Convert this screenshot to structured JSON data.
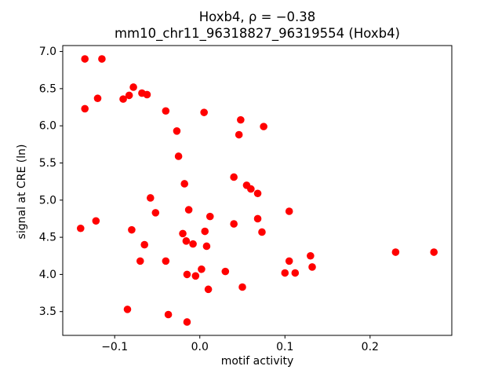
{
  "figure": {
    "background": "#ffffff",
    "frame_color": "#000000"
  },
  "chart_data": {
    "type": "scatter",
    "title": "Hoxb4, ρ = −0.38",
    "subtitle": "mm10_chr11_96318827_96319554 (Hoxb4)",
    "xlabel": "motif activity",
    "ylabel": "signal at CRE (ln)",
    "marker_color": "#ff0000",
    "marker_radius_px": 4.8,
    "grid": false,
    "legend": null,
    "xlim": [
      -0.161,
      0.296
    ],
    "ylim": [
      3.18,
      7.08
    ],
    "xticks": {
      "values": [
        -0.1,
        0.0,
        0.1,
        0.2
      ],
      "labels": [
        "−0.1",
        "0.0",
        "0.1",
        "0.2"
      ]
    },
    "yticks": {
      "values": [
        3.5,
        4.0,
        4.5,
        5.0,
        5.5,
        6.0,
        6.5,
        7.0
      ],
      "labels": [
        "3.5",
        "4.0",
        "4.5",
        "5.0",
        "5.5",
        "6.0",
        "6.5",
        "7.0"
      ]
    },
    "points": [
      [
        -0.135,
        6.9
      ],
      [
        -0.115,
        6.9
      ],
      [
        -0.135,
        6.23
      ],
      [
        -0.12,
        6.37
      ],
      [
        -0.09,
        6.36
      ],
      [
        -0.083,
        6.41
      ],
      [
        -0.078,
        6.52
      ],
      [
        -0.068,
        6.44
      ],
      [
        -0.062,
        6.42
      ],
      [
        -0.04,
        6.2
      ],
      [
        0.005,
        6.18
      ],
      [
        -0.027,
        5.93
      ],
      [
        0.048,
        6.08
      ],
      [
        0.046,
        5.88
      ],
      [
        0.075,
        5.99
      ],
      [
        -0.025,
        5.59
      ],
      [
        -0.018,
        5.22
      ],
      [
        0.04,
        5.31
      ],
      [
        0.055,
        5.2
      ],
      [
        0.06,
        5.15
      ],
      [
        0.068,
        5.09
      ],
      [
        -0.058,
        5.03
      ],
      [
        -0.013,
        4.87
      ],
      [
        -0.052,
        4.83
      ],
      [
        -0.14,
        4.62
      ],
      [
        -0.122,
        4.72
      ],
      [
        -0.08,
        4.6
      ],
      [
        0.012,
        4.78
      ],
      [
        0.04,
        4.68
      ],
      [
        0.068,
        4.75
      ],
      [
        0.073,
        4.57
      ],
      [
        0.105,
        4.85
      ],
      [
        -0.02,
        4.55
      ],
      [
        -0.016,
        4.45
      ],
      [
        -0.008,
        4.41
      ],
      [
        0.006,
        4.58
      ],
      [
        0.008,
        4.38
      ],
      [
        -0.065,
        4.4
      ],
      [
        -0.07,
        4.18
      ],
      [
        -0.04,
        4.18
      ],
      [
        -0.015,
        4.0
      ],
      [
        -0.005,
        3.98
      ],
      [
        0.002,
        4.07
      ],
      [
        0.03,
        4.04
      ],
      [
        0.105,
        4.18
      ],
      [
        0.1,
        4.02
      ],
      [
        0.112,
        4.02
      ],
      [
        0.13,
        4.25
      ],
      [
        0.132,
        4.1
      ],
      [
        0.23,
        4.3
      ],
      [
        0.275,
        4.3
      ],
      [
        0.01,
        3.8
      ],
      [
        0.05,
        3.83
      ],
      [
        -0.085,
        3.53
      ],
      [
        -0.037,
        3.46
      ],
      [
        -0.015,
        3.36
      ]
    ]
  }
}
